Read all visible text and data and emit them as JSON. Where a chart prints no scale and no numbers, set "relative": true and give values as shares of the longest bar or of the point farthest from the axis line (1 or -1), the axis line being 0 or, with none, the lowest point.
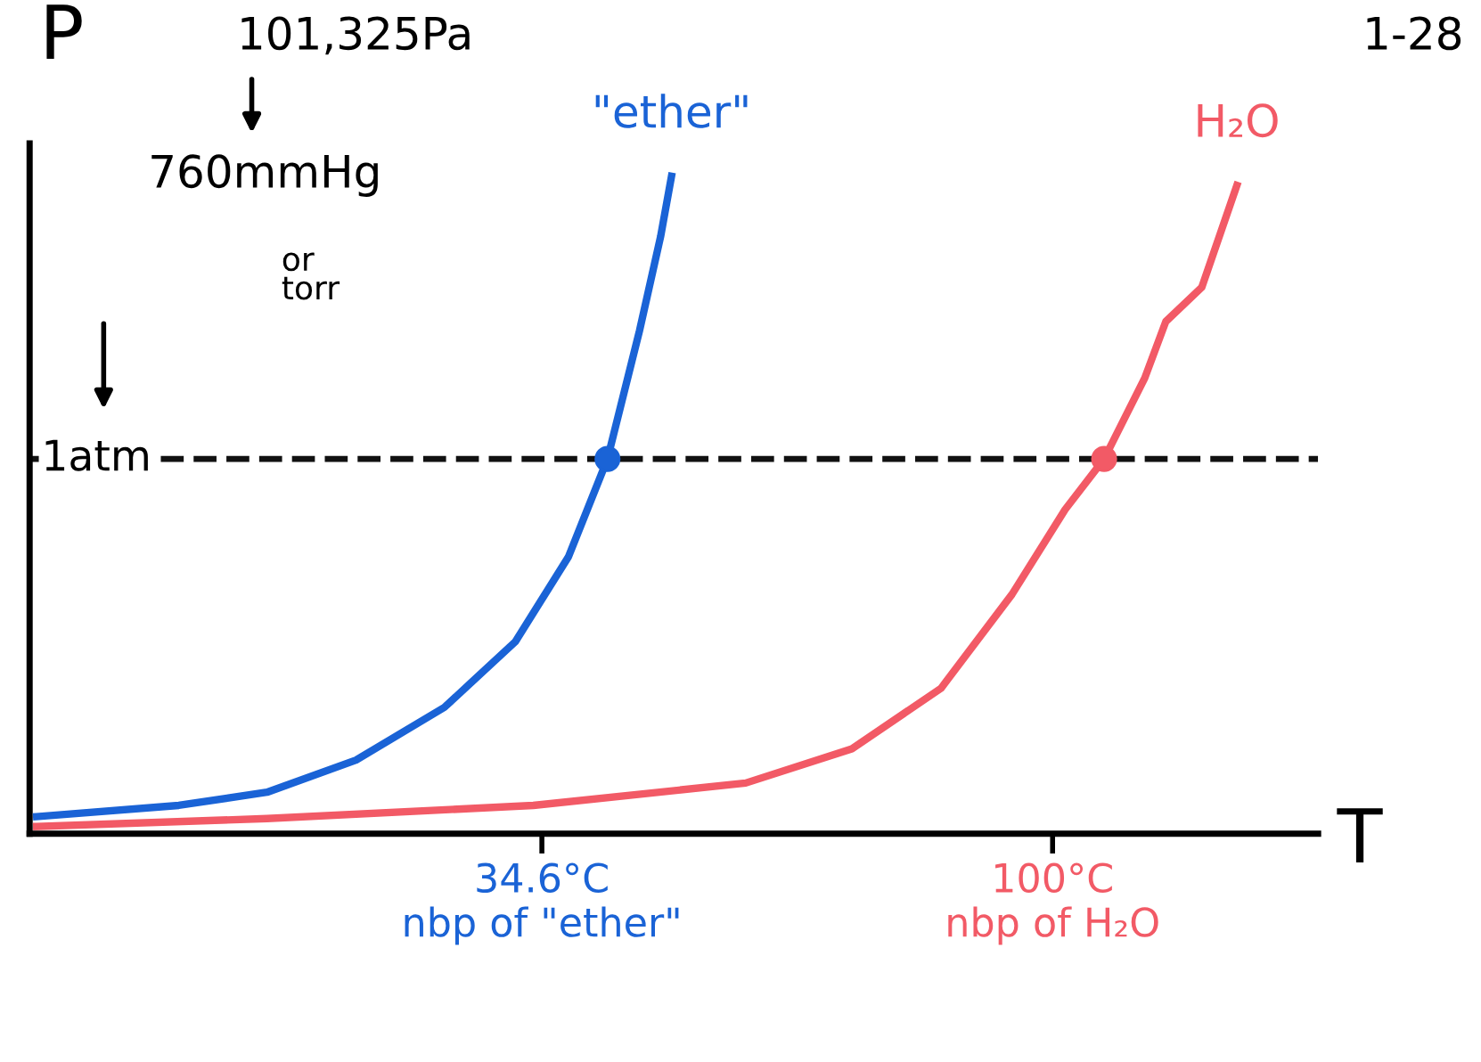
{
  "chart_data": {
    "type": "line",
    "xlabel": "T",
    "ylabel": "P",
    "relative": true,
    "xlim": [
      -31,
      134
    ],
    "xticks": [
      {
        "value": 34.6,
        "label": "34.6°C\nnbp of \"ether\""
      },
      {
        "value": 100,
        "label": "100°C\nnbp of H₂O"
      }
    ],
    "series": [
      {
        "name": "\"ether\"",
        "color": "#1a63d6",
        "x": [
          -30.1,
          -11.9,
          -0.6,
          10.8,
          22.1,
          31.2,
          38.0,
          43.0,
          47.1,
          49.8,
          51.2
        ],
        "values": [
          0.026,
          0.043,
          0.063,
          0.112,
          0.192,
          0.292,
          0.421,
          0.57,
          0.765,
          0.908,
          1.0
        ]
      },
      {
        "name": "H₂O",
        "color": "#f25a66",
        "x": [
          -30.1,
          -0.6,
          33.5,
          60.7,
          74.3,
          85.7,
          94.8,
          101.6,
          106.6,
          111.8,
          114.5,
          119.1,
          123.6
        ],
        "values": [
          0.011,
          0.023,
          0.043,
          0.077,
          0.129,
          0.221,
          0.364,
          0.493,
          0.57,
          0.693,
          0.779,
          0.831,
          0.986
        ]
      },
      {
        "type": "scatter",
        "marker": "circle",
        "x": [
          43.0,
          106.6
        ],
        "values": [
          0.57,
          0.57
        ],
        "colors": [
          "#1a63d6",
          "#f25a66"
        ]
      }
    ],
    "ref_lines": [
      {
        "axis": "y",
        "value": 0.57,
        "label": "1atm",
        "color": "#111111",
        "line_style": "dashed"
      }
    ],
    "annotations": [
      "101,325Pa",
      "760mmHg",
      "or\ntorr",
      "1-28"
    ],
    "grid": false,
    "legend": false,
    "tick_labels": "x",
    "line_style": "solid",
    "marker": "none"
  }
}
